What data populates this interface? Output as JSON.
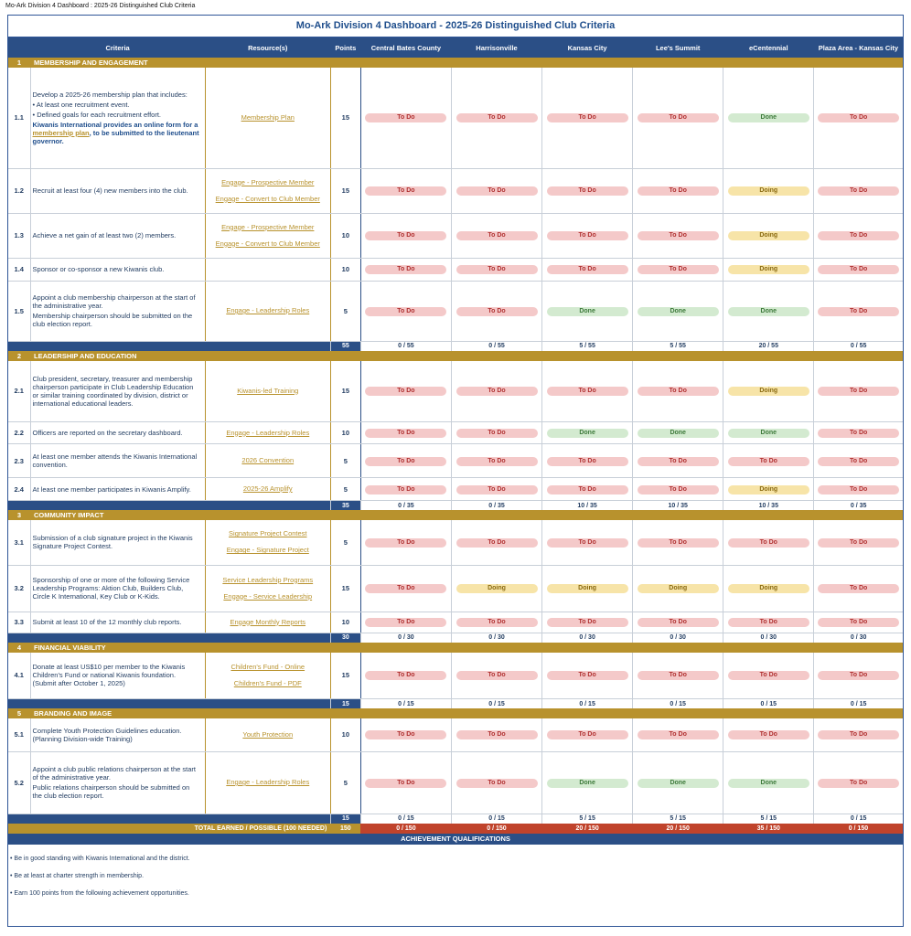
{
  "doc_title": "Mo-Ark Division 4 Dashboard : 2025-26 Distinguished Club Criteria",
  "main_title": "Mo-Ark Division 4 Dashboard - 2025-26 Distinguished Club Criteria",
  "header": {
    "criteria": "Criteria",
    "resources": "Resource(s)",
    "points": "Points",
    "clubs": [
      "Central Bates County",
      "Harrisonville",
      "Kansas City",
      "Lee's Summit",
      "eCentennial",
      "Plaza Area - Kansas City"
    ]
  },
  "sections": [
    {
      "num": "1",
      "title": "MEMBERSHIP AND ENGAGEMENT"
    },
    {
      "num": "2",
      "title": "LEADERSHIP AND EDUCATION"
    },
    {
      "num": "3",
      "title": "COMMUNITY IMPACT"
    },
    {
      "num": "4",
      "title": "FINANCIAL VIABILITY"
    },
    {
      "num": "5",
      "title": "BRANDING AND IMAGE"
    }
  ],
  "rows": {
    "r1_1": {
      "num": "1.1",
      "lines": [
        "Develop a 2025-26 membership plan that includes:",
        "• At least one recruitment event.",
        "• Defined goals for each recruitment effort."
      ],
      "note_pre": "Kiwanis International provides an online form for a ",
      "note_link": "membership plan",
      "note_post": ", to be submitted to the lieutenant governor.",
      "res": [
        "Membership Plan"
      ],
      "pts": "15"
    },
    "r1_2": {
      "num": "1.2",
      "lines": [
        "Recruit at least four (4) new members into the club."
      ],
      "res": [
        "Engage - Prospective Member",
        "Engage - Convert to Club Member"
      ],
      "pts": "15"
    },
    "r1_3": {
      "num": "1.3",
      "lines": [
        "Achieve a net gain of at least two (2) members."
      ],
      "res": [
        "Engage - Prospective Member",
        "Engage - Convert to Club Member"
      ],
      "pts": "10"
    },
    "r1_4": {
      "num": "1.4",
      "lines": [
        "Sponsor or co-sponsor a new Kiwanis club."
      ],
      "res": [],
      "pts": "10"
    },
    "r1_5": {
      "num": "1.5",
      "lines": [
        "Appoint a club membership chairperson at the start of the administrative year.",
        "Membership chairperson should be submitted on the club election report."
      ],
      "res": [
        "Engage - Leadership Roles"
      ],
      "pts": "5"
    },
    "r2_1": {
      "num": "2.1",
      "lines": [
        "Club president, secretary, treasurer and membership chairperson participate in Club Leadership Education or similar training coordinated by division, district or international educational leaders."
      ],
      "res": [
        "Kiwanis-led Training"
      ],
      "pts": "15"
    },
    "r2_2": {
      "num": "2.2",
      "lines": [
        "Officers are reported on the secretary dashboard."
      ],
      "res": [
        "Engage - Leadership Roles"
      ],
      "pts": "10"
    },
    "r2_3": {
      "num": "2.3",
      "lines": [
        "At least one member attends the Kiwanis International convention."
      ],
      "res": [
        "2026 Convention"
      ],
      "pts": "5"
    },
    "r2_4": {
      "num": "2.4",
      "lines": [
        "At least one member participates in Kiwanis Amplify."
      ],
      "res": [
        "2025-26 Amplify"
      ],
      "pts": "5"
    },
    "r3_1": {
      "num": "3.1",
      "lines": [
        "Submission of a club signature project in the Kiwanis Signature Project Contest."
      ],
      "res": [
        "Signature Project Contest",
        "Engage - Signature Project"
      ],
      "pts": "5"
    },
    "r3_2": {
      "num": "3.2",
      "lines": [
        "Sponsorship of one or more of the following Service Leadership Programs: Aktion Club, Builders Club, Circle K International, Key Club or K-Kids."
      ],
      "res": [
        "Service Leadership Programs",
        "Engage - Service Leadership"
      ],
      "pts": "15"
    },
    "r3_3": {
      "num": "3.3",
      "lines": [
        "Submit at least 10 of the 12 monthly club reports."
      ],
      "res": [
        "Engage Monthly Reports"
      ],
      "pts": "10"
    },
    "r4_1": {
      "num": "4.1",
      "lines": [
        "Donate at least US$10 per member to the Kiwanis Children's Fund or national Kiwanis foundation. (Submit after October 1, 2025)"
      ],
      "res": [
        "Children's Fund - Online",
        "Children's Fund - PDF"
      ],
      "pts": "15"
    },
    "r5_1": {
      "num": "5.1",
      "lines": [
        "Complete Youth Protection Guidelines education. (Planning Division-wide Training)"
      ],
      "res": [
        "Youth Protection"
      ],
      "pts": "10"
    },
    "r5_2": {
      "num": "5.2",
      "lines": [
        "Appoint a club public relations chairperson at the start of the administrative year.",
        "Public relations chairperson should be submitted on the club election report."
      ],
      "res": [
        "Engage - Leadership Roles"
      ],
      "pts": "5"
    }
  },
  "status": {
    "r1_1": [
      "To Do",
      "To Do",
      "To Do",
      "To Do",
      "Done",
      "To Do"
    ],
    "r1_2": [
      "To Do",
      "To Do",
      "To Do",
      "To Do",
      "Doing",
      "To Do"
    ],
    "r1_3": [
      "To Do",
      "To Do",
      "To Do",
      "To Do",
      "Doing",
      "To Do"
    ],
    "r1_4": [
      "To Do",
      "To Do",
      "To Do",
      "To Do",
      "Doing",
      "To Do"
    ],
    "r1_5": [
      "To Do",
      "To Do",
      "Done",
      "Done",
      "Done",
      "To Do"
    ],
    "r2_1": [
      "To Do",
      "To Do",
      "To Do",
      "To Do",
      "Doing",
      "To Do"
    ],
    "r2_2": [
      "To Do",
      "To Do",
      "Done",
      "Done",
      "Done",
      "To Do"
    ],
    "r2_3": [
      "To Do",
      "To Do",
      "To Do",
      "To Do",
      "To Do",
      "To Do"
    ],
    "r2_4": [
      "To Do",
      "To Do",
      "To Do",
      "To Do",
      "Doing",
      "To Do"
    ],
    "r3_1": [
      "To Do",
      "To Do",
      "To Do",
      "To Do",
      "To Do",
      "To Do"
    ],
    "r3_2": [
      "To Do",
      "Doing",
      "Doing",
      "Doing",
      "Doing",
      "To Do"
    ],
    "r3_3": [
      "To Do",
      "To Do",
      "To Do",
      "To Do",
      "To Do",
      "To Do"
    ],
    "r4_1": [
      "To Do",
      "To Do",
      "To Do",
      "To Do",
      "To Do",
      "To Do"
    ],
    "r5_1": [
      "To Do",
      "To Do",
      "To Do",
      "To Do",
      "To Do",
      "To Do"
    ],
    "r5_2": [
      "To Do",
      "To Do",
      "Done",
      "Done",
      "Done",
      "To Do"
    ]
  },
  "totals": {
    "s1": {
      "pts": "55",
      "vals": [
        "0 / 55",
        "0 / 55",
        "5 / 55",
        "5 / 55",
        "20 / 55",
        "0 / 55"
      ]
    },
    "s2": {
      "pts": "35",
      "vals": [
        "0 / 35",
        "0 / 35",
        "10 / 35",
        "10 / 35",
        "10 / 35",
        "0 / 35"
      ]
    },
    "s3": {
      "pts": "30",
      "vals": [
        "0 / 30",
        "0 / 30",
        "0 / 30",
        "0 / 30",
        "0 / 30",
        "0 / 30"
      ]
    },
    "s4": {
      "pts": "15",
      "vals": [
        "0 / 15",
        "0 / 15",
        "0 / 15",
        "0 / 15",
        "0 / 15",
        "0 / 15"
      ]
    },
    "s5": {
      "pts": "15",
      "vals": [
        "0 / 15",
        "0 / 15",
        "5 / 15",
        "5 / 15",
        "5 / 15",
        "0 / 15"
      ]
    }
  },
  "grand": {
    "label": "TOTAL EARNED / POSSIBLE (100 NEEDED)",
    "pts": "150",
    "vals": [
      "0 / 150",
      "0 / 150",
      "20 / 150",
      "20 / 150",
      "35 / 150",
      "0 / 150"
    ]
  },
  "achievement": {
    "title": "ACHIEVEMENT QUALIFICATIONS",
    "items": [
      "• Be in good standing with Kiwanis International and the district.",
      "• Be at least at charter strength in membership.",
      "• Earn 100 points from the following achievement opportunities."
    ]
  },
  "colors": {
    "navy": "#2b4f86",
    "gold": "#b8922d",
    "todo": "#f4c9c9",
    "done": "#d3ead0",
    "doing": "#f7e4a8",
    "grand_red": "#c0432b"
  }
}
